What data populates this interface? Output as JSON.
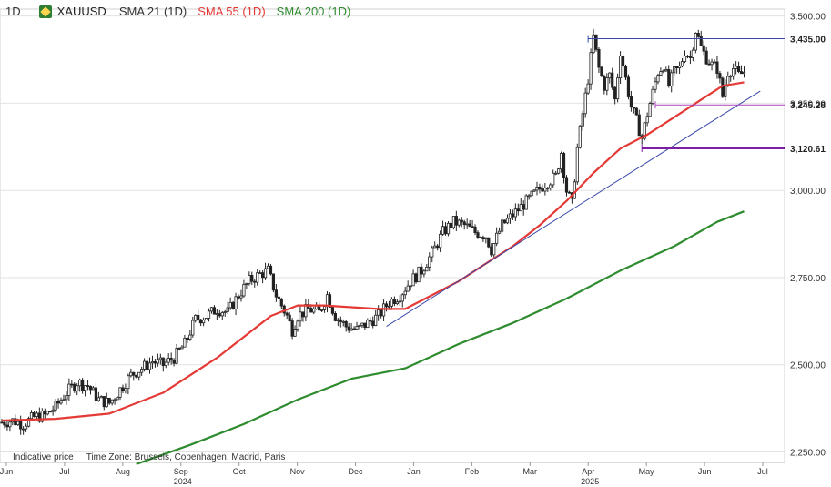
{
  "header": {
    "timeframe": "1D",
    "symbol": "XAUUSD",
    "sma21_label": "SMA 21 (1D)",
    "sma55_label": "SMA 55 (1D)",
    "sma200_label": "SMA 200 (1D)",
    "sma55_color": "#e53935",
    "sma200_color": "#2e8b2e"
  },
  "footer": {
    "indicative": "Indicative price",
    "timezone": "Time Zone: Brussels, Copenhagen, Madrid, Paris"
  },
  "chart_data": {
    "type": "candlestick",
    "ylim": [
      2220,
      3520
    ],
    "y_ticks": [
      {
        "value": 3500,
        "label": "3,500.00"
      },
      {
        "value": 3250,
        "label": "3,250.00"
      },
      {
        "value": 3000,
        "label": "3,000.00"
      },
      {
        "value": 2750,
        "label": "2,750.00"
      },
      {
        "value": 2500,
        "label": "2,500.00"
      },
      {
        "value": 2250,
        "label": "2,250.00"
      }
    ],
    "x_ticks": [
      "Jun",
      "Jul",
      "Aug",
      "Sep",
      "Oct",
      "Nov",
      "Dec",
      "Jan",
      "Feb",
      "Mar",
      "Apr",
      "May",
      "Jun",
      "Jul"
    ],
    "year_labels": [
      {
        "label": "2024",
        "after_tick": 3
      },
      {
        "label": "2025",
        "after_tick": 10
      }
    ],
    "price_levels": [
      {
        "value": 3435.0,
        "label": "3,435.00",
        "color": "#3949ab"
      },
      {
        "value": 3245.28,
        "label": "3,245.28",
        "color": "#ab47bc"
      },
      {
        "value": 3120.61,
        "label": "3,120.61",
        "color": "#7b1fa2"
      }
    ],
    "price_path": [
      [
        0,
        2335
      ],
      [
        4,
        2340
      ],
      [
        8,
        2330
      ],
      [
        12,
        2350
      ],
      [
        16,
        2355
      ],
      [
        20,
        2380
      ],
      [
        24,
        2420
      ],
      [
        28,
        2450
      ],
      [
        32,
        2440
      ],
      [
        36,
        2400
      ],
      [
        40,
        2390
      ],
      [
        44,
        2430
      ],
      [
        48,
        2470
      ],
      [
        52,
        2490
      ],
      [
        56,
        2510
      ],
      [
        60,
        2500
      ],
      [
        64,
        2520
      ],
      [
        68,
        2560
      ],
      [
        72,
        2630
      ],
      [
        76,
        2640
      ],
      [
        80,
        2660
      ],
      [
        84,
        2650
      ],
      [
        88,
        2700
      ],
      [
        92,
        2740
      ],
      [
        96,
        2760
      ],
      [
        99,
        2770
      ],
      [
        102,
        2700
      ],
      [
        106,
        2640
      ],
      [
        108,
        2600
      ],
      [
        110,
        2640
      ],
      [
        114,
        2660
      ],
      [
        118,
        2650
      ],
      [
        121,
        2700
      ],
      [
        124,
        2640
      ],
      [
        128,
        2610
      ],
      [
        132,
        2600
      ],
      [
        136,
        2620
      ],
      [
        140,
        2640
      ],
      [
        144,
        2680
      ],
      [
        148,
        2700
      ],
      [
        152,
        2740
      ],
      [
        156,
        2770
      ],
      [
        160,
        2820
      ],
      [
        164,
        2880
      ],
      [
        168,
        2910
      ],
      [
        172,
        2900
      ],
      [
        176,
        2880
      ],
      [
        180,
        2870
      ],
      [
        182,
        2830
      ],
      [
        186,
        2900
      ],
      [
        190,
        2930
      ],
      [
        194,
        2960
      ],
      [
        198,
        2990
      ],
      [
        202,
        3020
      ],
      [
        206,
        3040
      ],
      [
        208,
        3110
      ],
      [
        210,
        3000
      ],
      [
        212,
        2960
      ],
      [
        214,
        3120
      ],
      [
        216,
        3220
      ],
      [
        218,
        3320
      ],
      [
        220,
        3440
      ],
      [
        222,
        3350
      ],
      [
        224,
        3300
      ],
      [
        226,
        3330
      ],
      [
        228,
        3260
      ],
      [
        230,
        3400
      ],
      [
        232,
        3320
      ],
      [
        234,
        3240
      ],
      [
        236,
        3200
      ],
      [
        238,
        3150
      ],
      [
        240,
        3220
      ],
      [
        242,
        3280
      ],
      [
        244,
        3340
      ],
      [
        246,
        3360
      ],
      [
        248,
        3300
      ],
      [
        250,
        3340
      ],
      [
        252,
        3350
      ],
      [
        254,
        3400
      ],
      [
        256,
        3380
      ],
      [
        258,
        3460
      ],
      [
        260,
        3410
      ],
      [
        262,
        3380
      ],
      [
        264,
        3360
      ],
      [
        266,
        3350
      ],
      [
        268,
        3270
      ],
      [
        270,
        3340
      ],
      [
        272,
        3350
      ],
      [
        274,
        3330
      ],
      [
        276,
        3340
      ]
    ],
    "sma55": [
      [
        0,
        2340
      ],
      [
        20,
        2345
      ],
      [
        40,
        2360
      ],
      [
        60,
        2420
      ],
      [
        80,
        2520
      ],
      [
        90,
        2580
      ],
      [
        100,
        2640
      ],
      [
        110,
        2670
      ],
      [
        120,
        2670
      ],
      [
        130,
        2665
      ],
      [
        140,
        2660
      ],
      [
        150,
        2660
      ],
      [
        160,
        2700
      ],
      [
        170,
        2740
      ],
      [
        180,
        2790
      ],
      [
        190,
        2840
      ],
      [
        200,
        2900
      ],
      [
        210,
        2970
      ],
      [
        220,
        3050
      ],
      [
        230,
        3120
      ],
      [
        240,
        3160
      ],
      [
        250,
        3210
      ],
      [
        260,
        3260
      ],
      [
        268,
        3300
      ],
      [
        276,
        3310
      ]
    ],
    "sma200": [
      [
        50,
        2215
      ],
      [
        70,
        2270
      ],
      [
        90,
        2330
      ],
      [
        110,
        2400
      ],
      [
        130,
        2460
      ],
      [
        150,
        2490
      ],
      [
        170,
        2560
      ],
      [
        190,
        2620
      ],
      [
        210,
        2690
      ],
      [
        230,
        2770
      ],
      [
        250,
        2840
      ],
      [
        266,
        2910
      ],
      [
        276,
        2940
      ]
    ],
    "trendline": [
      [
        143,
        2610
      ],
      [
        282,
        3285
      ]
    ],
    "total_bars": 288
  }
}
